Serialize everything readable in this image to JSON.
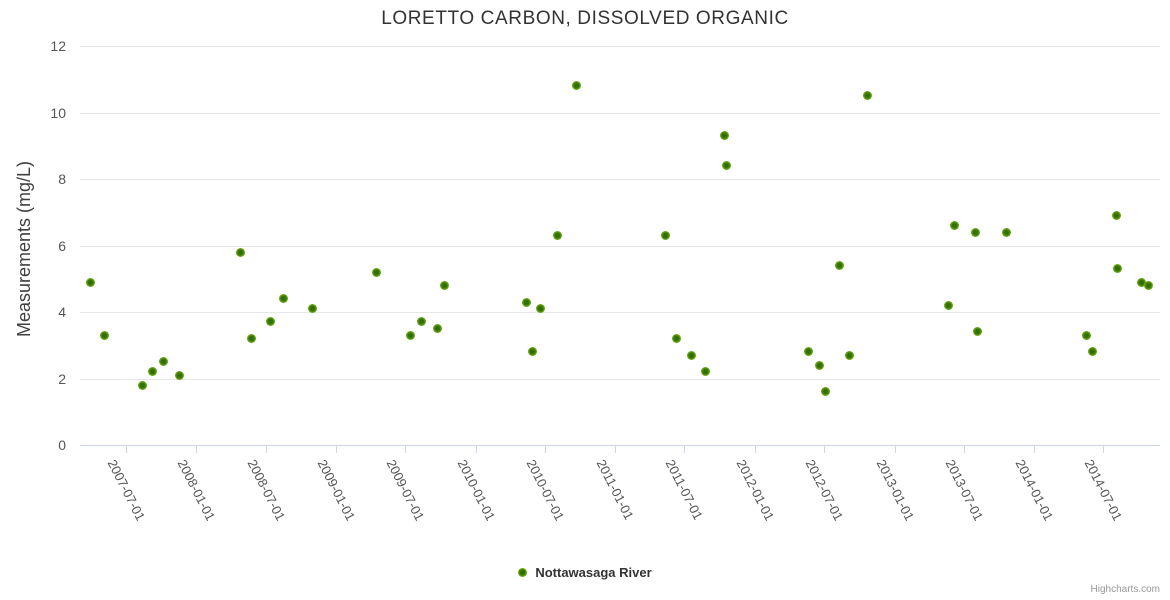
{
  "title": "LORETTO CARBON, DISSOLVED ORGANIC",
  "credits": "Highcharts.com",
  "legend": {
    "series_label": "Nottawasaga River"
  },
  "colors": {
    "marker_outer": "#7fbe33",
    "marker_core": "#346e00",
    "grid": "#e6e6e6",
    "axis_line": "#ccd6eb",
    "title_text": "#333333",
    "label_text": "#555555"
  },
  "chart_data": {
    "type": "scatter",
    "title": "LORETTO CARBON, DISSOLVED ORGANIC",
    "xlabel": "",
    "ylabel": "Measurements (mg/L)",
    "ylim": [
      0,
      12
    ],
    "ytick_step": 2,
    "grid": "horizontal-only",
    "legend_position": "bottom-center",
    "xticks": [
      "2007-07-01",
      "2008-01-01",
      "2008-07-01",
      "2009-01-01",
      "2009-07-01",
      "2010-01-01",
      "2010-07-01",
      "2011-01-01",
      "2011-07-01",
      "2012-01-01",
      "2012-07-01",
      "2013-01-01",
      "2013-07-01",
      "2014-01-01",
      "2014-07-01"
    ],
    "series": [
      {
        "name": "Nottawasaga River",
        "points": [
          [
            "2007-03-31",
            4.9
          ],
          [
            "2007-05-06",
            3.3
          ],
          [
            "2007-08-14",
            1.8
          ],
          [
            "2007-09-08",
            2.2
          ],
          [
            "2007-10-07",
            2.5
          ],
          [
            "2007-11-18",
            2.1
          ],
          [
            "2008-04-26",
            5.8
          ],
          [
            "2008-05-25",
            3.2
          ],
          [
            "2008-07-15",
            3.7
          ],
          [
            "2008-08-18",
            4.4
          ],
          [
            "2008-11-01",
            4.1
          ],
          [
            "2009-04-18",
            5.2
          ],
          [
            "2009-07-15",
            3.3
          ],
          [
            "2009-08-13",
            3.7
          ],
          [
            "2009-09-24",
            3.5
          ],
          [
            "2009-10-11",
            4.8
          ],
          [
            "2010-05-15",
            4.3
          ],
          [
            "2010-05-29",
            2.8
          ],
          [
            "2010-06-19",
            4.1
          ],
          [
            "2010-08-04",
            6.3
          ],
          [
            "2010-09-23",
            10.8
          ],
          [
            "2011-05-12",
            6.3
          ],
          [
            "2011-06-10",
            3.2
          ],
          [
            "2011-07-20",
            2.7
          ],
          [
            "2011-08-26",
            2.2
          ],
          [
            "2011-10-14",
            9.3
          ],
          [
            "2011-10-20",
            8.4
          ],
          [
            "2012-05-21",
            2.8
          ],
          [
            "2012-06-20",
            2.4
          ],
          [
            "2012-07-05",
            1.6
          ],
          [
            "2012-08-09",
            5.4
          ],
          [
            "2012-09-06",
            2.7
          ],
          [
            "2012-10-23",
            10.5
          ],
          [
            "2013-05-21",
            4.2
          ],
          [
            "2013-06-06",
            6.6
          ],
          [
            "2013-08-01",
            6.4
          ],
          [
            "2013-08-06",
            3.4
          ],
          [
            "2013-10-20",
            6.4
          ],
          [
            "2014-05-18",
            3.3
          ],
          [
            "2014-06-03",
            2.8
          ],
          [
            "2014-08-04",
            6.9
          ],
          [
            "2014-08-08",
            5.3
          ],
          [
            "2014-10-10",
            4.9
          ],
          [
            "2014-10-28",
            4.8
          ]
        ]
      }
    ]
  }
}
